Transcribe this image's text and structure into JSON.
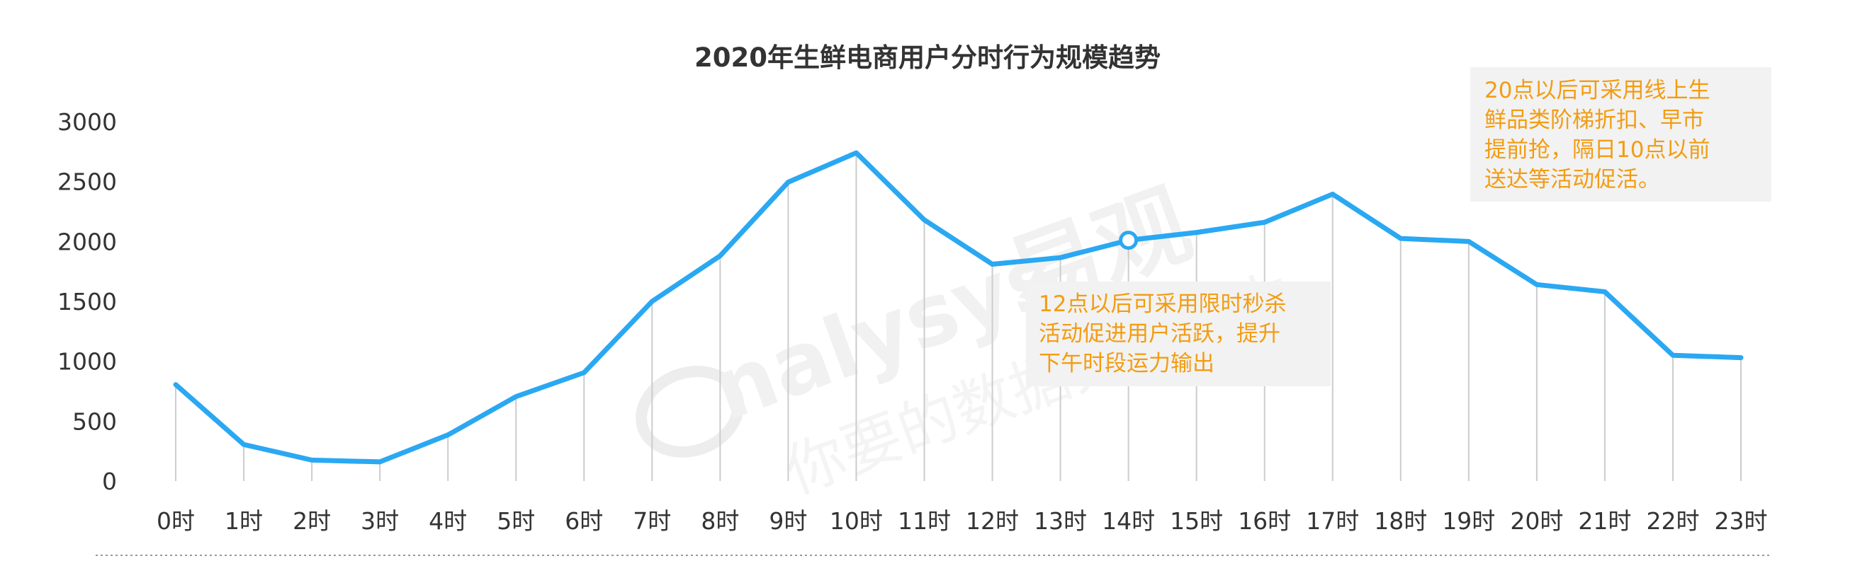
{
  "chart_data": {
    "type": "line",
    "title": "2020年生鲜电商用户分时行为规模趋势",
    "categories": [
      "0时",
      "1时",
      "2时",
      "3时",
      "4时",
      "5时",
      "6时",
      "7时",
      "8时",
      "9时",
      "10时",
      "11时",
      "12时",
      "13时",
      "14时",
      "15时",
      "16时",
      "17时",
      "18时",
      "19时",
      "20时",
      "21时",
      "22时",
      "23时"
    ],
    "values": [
      805,
      305,
      175,
      160,
      385,
      705,
      905,
      1500,
      1880,
      2495,
      2740,
      2180,
      1810,
      1865,
      2010,
      2075,
      2160,
      2395,
      2025,
      2000,
      1640,
      1580,
      1050,
      1030
    ],
    "y_ticks": [
      "0",
      "500",
      "1000",
      "1500",
      "2000",
      "2500",
      "3000"
    ],
    "ylim": [
      0,
      3000
    ],
    "grid": "vertical drop lines at each category",
    "highlight_index": 14,
    "annotations": [
      {
        "text_lines": [
          "20点以后可采用线上生",
          "鲜品类阶梯折扣、早市",
          "提前抢，隔日10点以前",
          "送达等活动促活。"
        ]
      },
      {
        "text_lines": [
          "12点以后可采用限时秒杀",
          "活动促进用户活跃，提升",
          "下午时段运力输出"
        ]
      }
    ],
    "watermark": {
      "brand": "nalysys",
      "brand_cn": "易观",
      "slogan": "你要的数据分析能力"
    }
  },
  "colors": {
    "line": "#2aa8f2",
    "drop_line": "#cccccc",
    "annotation_text": "#f39c12",
    "annotation_bg": "#f2f2f2",
    "axis_text": "#333333",
    "watermark": "#e6e6e6"
  }
}
